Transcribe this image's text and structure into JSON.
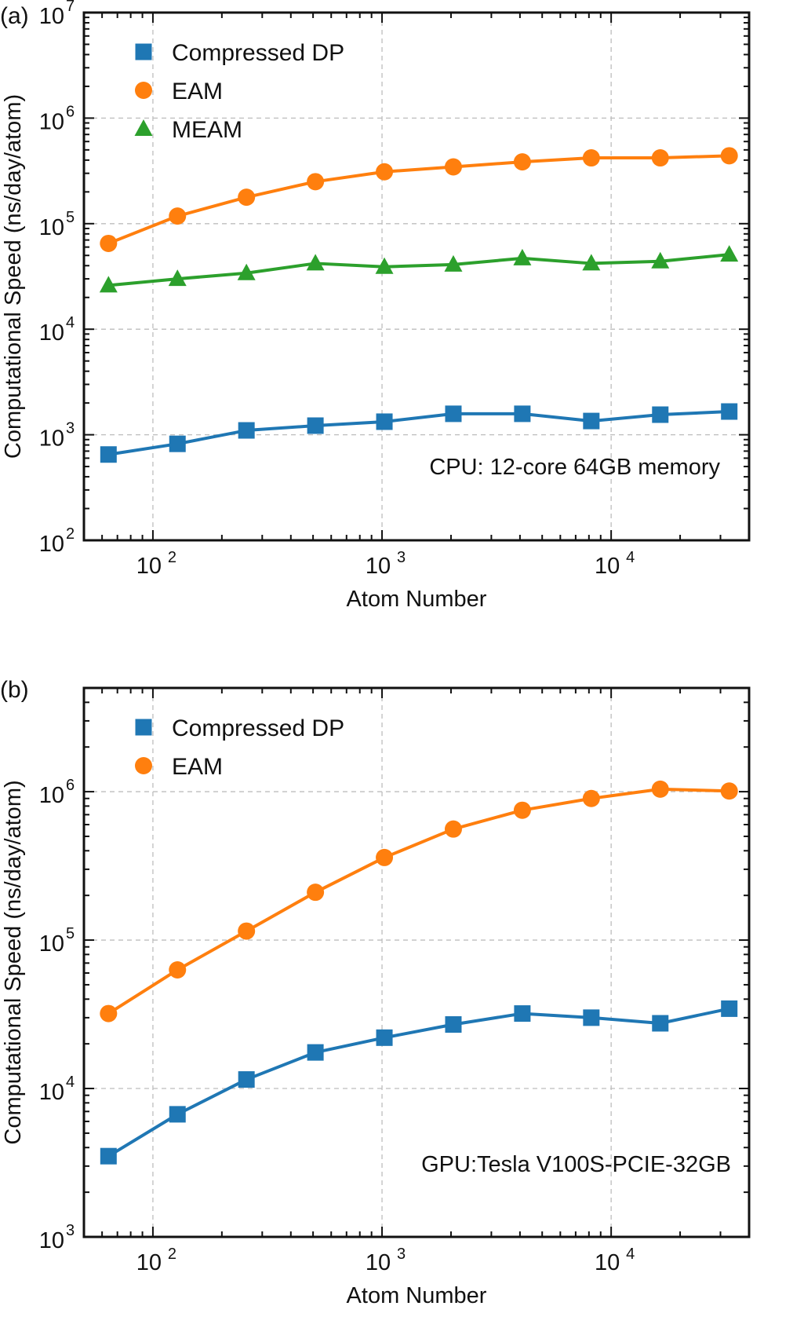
{
  "chart_data": [
    {
      "panel": "(a)",
      "type": "line",
      "xlabel": "Atom Number",
      "ylabel": "Computational Speed (ns/day/atom)",
      "xscale": "log",
      "yscale": "log",
      "xlim": [
        50,
        40000
      ],
      "ylim": [
        100,
        10000000
      ],
      "x_ticks": [
        100,
        1000,
        10000
      ],
      "x_tick_labels": [
        {
          "base": "10",
          "exp": "2"
        },
        {
          "base": "10",
          "exp": "3"
        },
        {
          "base": "10",
          "exp": "4"
        }
      ],
      "y_ticks": [
        100,
        1000,
        10000,
        100000,
        1000000,
        10000000
      ],
      "y_tick_labels": [
        {
          "base": "10",
          "exp": "2"
        },
        {
          "base": "10",
          "exp": "3"
        },
        {
          "base": "10",
          "exp": "4"
        },
        {
          "base": "10",
          "exp": "5"
        },
        {
          "base": "10",
          "exp": "6"
        },
        {
          "base": "10",
          "exp": "7"
        }
      ],
      "grid": true,
      "legend_position": "top-left",
      "annotation": "CPU: 12-core 64GB memory",
      "x": [
        64,
        128,
        256,
        512,
        1024,
        2048,
        4096,
        8192,
        16384,
        32768
      ],
      "series": [
        {
          "name": "Compressed DP",
          "color": "#1f77b4",
          "marker": "square",
          "values": [
            650,
            820,
            1100,
            1220,
            1330,
            1580,
            1580,
            1350,
            1550,
            1660
          ]
        },
        {
          "name": "EAM",
          "color": "#ff7f0e",
          "marker": "circle",
          "values": [
            65000,
            118000,
            178000,
            250000,
            310000,
            345000,
            385000,
            420000,
            420000,
            440000
          ]
        },
        {
          "name": "MEAM",
          "color": "#2ca02c",
          "marker": "triangle",
          "values": [
            26000,
            30000,
            34000,
            42000,
            39000,
            41000,
            47000,
            42000,
            44000,
            51000
          ]
        }
      ]
    },
    {
      "panel": "(b)",
      "type": "line",
      "xlabel": "Atom Number",
      "ylabel": "Computational Speed (ns/day/atom)",
      "xscale": "log",
      "yscale": "log",
      "xlim": [
        50,
        40000
      ],
      "ylim": [
        1000,
        5000000
      ],
      "x_ticks": [
        100,
        1000,
        10000
      ],
      "x_tick_labels": [
        {
          "base": "10",
          "exp": "2"
        },
        {
          "base": "10",
          "exp": "3"
        },
        {
          "base": "10",
          "exp": "4"
        }
      ],
      "y_ticks": [
        1000,
        10000,
        100000,
        1000000
      ],
      "y_tick_labels": [
        {
          "base": "10",
          "exp": "3"
        },
        {
          "base": "10",
          "exp": "4"
        },
        {
          "base": "10",
          "exp": "5"
        },
        {
          "base": "10",
          "exp": "6"
        }
      ],
      "grid": true,
      "legend_position": "top-left",
      "annotation": "GPU:Tesla V100S-PCIE-32GB",
      "x": [
        64,
        128,
        256,
        512,
        1024,
        2048,
        4096,
        8192,
        16384,
        32768
      ],
      "series": [
        {
          "name": "Compressed DP",
          "color": "#1f77b4",
          "marker": "square",
          "values": [
            3500,
            6700,
            11500,
            17500,
            22000,
            27000,
            32000,
            30000,
            27500,
            34500
          ]
        },
        {
          "name": "EAM",
          "color": "#ff7f0e",
          "marker": "circle",
          "values": [
            32000,
            63000,
            115000,
            210000,
            360000,
            560000,
            750000,
            900000,
            1040000,
            1010000
          ]
        }
      ]
    }
  ]
}
